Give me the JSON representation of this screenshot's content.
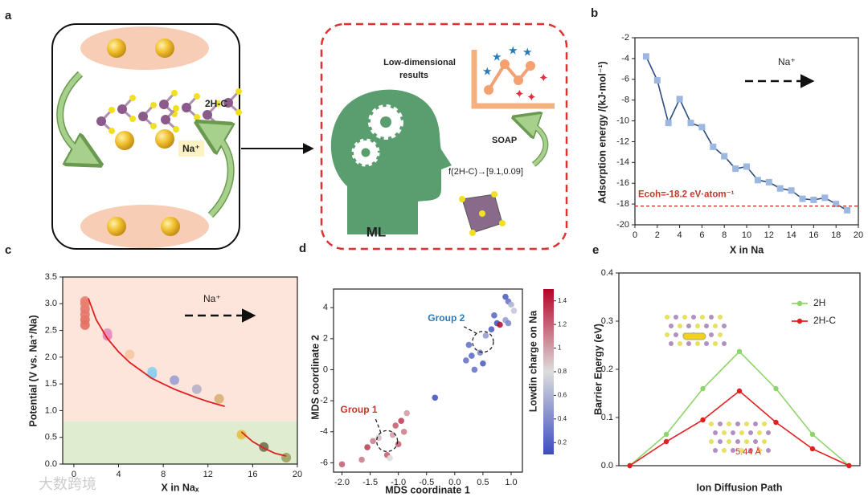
{
  "panel_labels": [
    "a",
    "b",
    "c",
    "d",
    "e"
  ],
  "diagram": {
    "structure_label": "2H-C",
    "ion_label": "Na⁺",
    "ml_label": "ML",
    "results_label": [
      "Low-dimensional",
      "results"
    ],
    "descriptor_label": "SOAP",
    "mapping_label": "f(2H-C)→[9.1,0.09]"
  },
  "chart_data": [
    {
      "type": "line",
      "x": [
        1,
        2,
        3,
        4,
        5,
        6,
        7,
        8,
        9,
        10,
        11,
        12,
        13,
        14,
        15,
        16,
        17,
        18,
        19
      ],
      "values": [
        -3.8,
        -6.1,
        -10.2,
        -7.9,
        -10.2,
        -10.6,
        -12.5,
        -13.4,
        -14.6,
        -14.4,
        -15.7,
        -15.9,
        -16.5,
        -16.7,
        -17.5,
        -17.6,
        -17.4,
        -18.0,
        -18.6
      ],
      "color": "#9db8e0",
      "line_color": "#2b4c7e",
      "marker": "square",
      "xlim": [
        0,
        20
      ],
      "ylim": [
        -20,
        -2
      ],
      "xticks": [
        0,
        2,
        4,
        6,
        8,
        10,
        12,
        14,
        16,
        18,
        20
      ],
      "yticks": [
        -2,
        -4,
        -6,
        -8,
        -10,
        -12,
        -14,
        -16,
        -18,
        -20
      ],
      "xlabel": "X in Na",
      "ylabel": "Adsorption energy /(kJ·mol⁻¹)",
      "annotation": "Na⁺",
      "reference_line": {
        "value": -18.2,
        "label": "Ecoh=-18.2 eV·atom⁻¹",
        "color": "#c0392b"
      }
    },
    {
      "type": "scatter",
      "x": [
        1,
        1,
        1,
        1,
        1,
        1,
        3,
        3,
        5,
        7,
        7,
        9,
        11,
        13,
        15,
        17,
        19
      ],
      "values": [
        2.6,
        2.7,
        2.8,
        2.9,
        3.0,
        3.05,
        2.4,
        2.45,
        2.05,
        1.68,
        1.73,
        1.57,
        1.4,
        1.22,
        0.55,
        0.32,
        0.12
      ],
      "colors": [
        "#e07060",
        "#e07060",
        "#e4786a",
        "#e4786a",
        "#e88070",
        "#e88070",
        "#e57fb0",
        "#e890c0",
        "#f5c6a0",
        "#7fc8e8",
        "#8fd0ee",
        "#9aa0d0",
        "#b8b0c8",
        "#d9b070",
        "#e8c040",
        "#707050",
        "#a0a060"
      ],
      "fits": [
        {
          "x": [
            1.3,
            2,
            3,
            4,
            5,
            6,
            7,
            8,
            9,
            10,
            11,
            12,
            13.5
          ],
          "values": [
            3.1,
            2.7,
            2.35,
            2.1,
            1.9,
            1.75,
            1.6,
            1.5,
            1.4,
            1.32,
            1.24,
            1.17,
            1.08
          ],
          "color": "#e02020"
        },
        {
          "x": [
            15,
            16,
            17,
            18,
            19
          ],
          "values": [
            0.6,
            0.42,
            0.3,
            0.2,
            0.15
          ],
          "color": "#e02020"
        }
      ],
      "bands": [
        {
          "from": 0.8,
          "to": 3.5,
          "color": "#fde5dc"
        },
        {
          "from": 0,
          "to": 0.8,
          "color": "#dfeccf"
        }
      ],
      "xlim": [
        -1,
        20
      ],
      "ylim": [
        0,
        3.5
      ],
      "xticks": [
        0,
        4,
        8,
        12,
        16,
        20
      ],
      "yticks": [
        {
          "value": 0,
          "label": "0.0"
        },
        0.5,
        {
          "value": 1,
          "label": "1.0"
        },
        1.5,
        {
          "value": 2,
          "label": "2.0"
        },
        2.5,
        {
          "value": 3,
          "label": "3.0"
        },
        3.5
      ],
      "xlabel": "X in Naₓ",
      "ylabel": "Potential (V vs. Na⁺/Na)",
      "annotation": "Na⁺"
    },
    {
      "type": "scatter",
      "x": [
        -2.0,
        -1.65,
        -1.55,
        -1.45,
        -1.35,
        -1.2,
        -1.15,
        -1.1,
        -1.05,
        -0.95,
        -0.9,
        -0.85,
        -1.0,
        -0.35,
        0.2,
        0.3,
        0.35,
        0.45,
        0.5,
        0.25,
        0.55,
        0.65,
        0.75,
        0.8,
        0.9,
        0.9,
        0.95,
        1.0,
        1.05,
        0.95,
        0.7
      ],
      "values": [
        -6.1,
        -5.8,
        -5.0,
        -4.6,
        -4.4,
        -5.5,
        -5.7,
        -4.2,
        -3.6,
        -3.3,
        -4.0,
        -2.8,
        -4.8,
        -1.8,
        0.6,
        0.9,
        0.0,
        1.1,
        0.4,
        1.6,
        2.2,
        2.6,
        3.0,
        2.9,
        3.2,
        4.7,
        4.4,
        4.2,
        3.8,
        3.0,
        3.5
      ],
      "c": [
        1.2,
        1.1,
        1.3,
        1.1,
        0.9,
        1.2,
        0.8,
        1.0,
        1.2,
        1.3,
        1.1,
        1.0,
        1.2,
        0.15,
        0.3,
        0.25,
        0.3,
        0.4,
        0.2,
        0.3,
        0.5,
        0.2,
        0.15,
        1.45,
        0.5,
        0.2,
        0.3,
        0.6,
        0.7,
        0.4,
        0.25
      ],
      "clim": [
        0.1,
        1.5
      ],
      "cticks": [
        0.2,
        0.4,
        0.6,
        0.8,
        1.0,
        1.2,
        1.4
      ],
      "colorbar_label": "Lowdin charge on Na",
      "xlim": [
        -2.15,
        1.2
      ],
      "ylim": [
        -6.6,
        5.2
      ],
      "xticks": [
        {
          "value": -2,
          "label": "-2.0"
        },
        -1.5,
        {
          "value": -1,
          "label": "-1.0"
        },
        -0.5,
        {
          "value": 0,
          "label": "0.0"
        },
        0.5,
        {
          "value": 1,
          "label": "1.0"
        }
      ],
      "yticks": [
        4,
        2,
        0,
        -2,
        -4,
        -6
      ],
      "xlabel": "MDS coordinate 1",
      "ylabel": "MDS coordinate 2",
      "annotations": [
        {
          "text": "Group 1",
          "color": "#c0392b"
        },
        {
          "text": "Group 2",
          "color": "#2a7ab8"
        }
      ]
    },
    {
      "type": "line",
      "x": [
        0,
        1,
        2,
        3,
        4,
        5,
        6
      ],
      "series": [
        {
          "name": "2H",
          "color": "#8fd46a",
          "values": [
            0,
            0.065,
            0.16,
            0.237,
            0.16,
            0.065,
            0
          ]
        },
        {
          "name": "2H-C",
          "color": "#e02020",
          "values": [
            0,
            0.05,
            0.095,
            0.155,
            0.09,
            0.035,
            0
          ]
        }
      ],
      "marker": "circle",
      "xlim": [
        -0.3,
        6.3
      ],
      "ylim": [
        0,
        0.4
      ],
      "yticks": [
        {
          "value": 0,
          "label": "0.0"
        },
        0.1,
        0.2,
        0.3,
        0.4
      ],
      "xlabel": "Ion Diffusion Path",
      "ylabel": "Barrier Energy (eV)",
      "annotation": "5.44 Å"
    }
  ],
  "watermark": "大数跨境"
}
